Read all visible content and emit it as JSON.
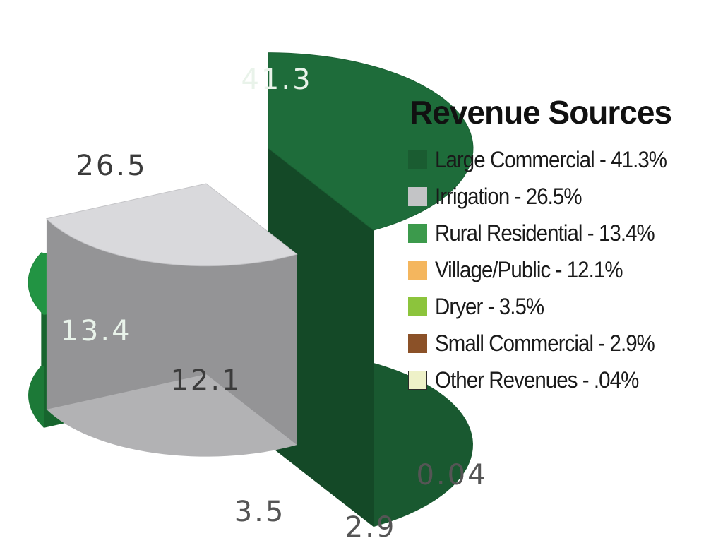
{
  "chart_data": {
    "type": "pie",
    "title": "Revenue Sources",
    "style": "3d-exploded",
    "legend_position": "right",
    "slices": [
      {
        "category": "Large Commercial",
        "value": 41.3,
        "label": "41.3",
        "legend": "Large Commercial - 41.3%",
        "color": "#1e6c3a",
        "legend_color": "#1a5c31"
      },
      {
        "category": "Irrigation",
        "value": 26.5,
        "label": "26.5",
        "legend": "Irrigation - 26.5%",
        "color": "#d9d9dc",
        "legend_color": "#c3c4c6"
      },
      {
        "category": "Rural Residential",
        "value": 13.4,
        "label": "13.4",
        "legend": "Rural Residential - 13.4%",
        "color": "#229443",
        "legend_color": "#3c9a4c"
      },
      {
        "category": "Village/Public",
        "value": 12.1,
        "label": "12.1",
        "legend": "Village/Public - 12.1%",
        "color": "#f3b960",
        "legend_color": "#f4b65e"
      },
      {
        "category": "Dryer",
        "value": 3.5,
        "label": "3.5",
        "legend": "Dryer - 3.5%",
        "color": "#8fcc3f",
        "legend_color": "#8cc43c"
      },
      {
        "category": "Small Commercial",
        "value": 2.9,
        "label": "2.9",
        "legend": "Small Commercial - 2.9%",
        "color": "#8a5028",
        "legend_color": "#8b5128"
      },
      {
        "category": "Other Revenues",
        "value": 0.04,
        "label": "0.04",
        "legend": "Other Revenues - .04%",
        "color": "#e6d86a",
        "legend_color": "#eef1c8"
      }
    ]
  }
}
